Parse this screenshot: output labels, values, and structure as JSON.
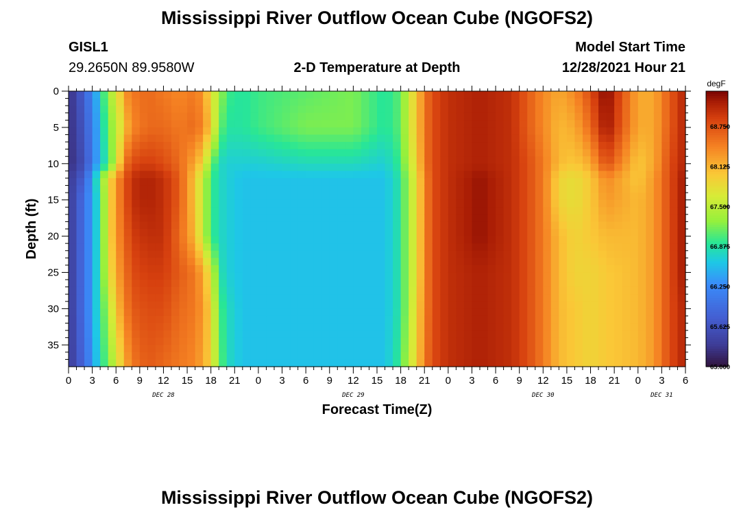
{
  "title": "Mississippi River Outflow Ocean Cube (NGOFS2)",
  "station": {
    "id": "GISL1",
    "location": "29.2650N  89.9580W"
  },
  "subtitle": "2-D Temperature at Depth",
  "model_start": {
    "label": "Model Start Time",
    "value": "12/28/2021 Hour 21"
  },
  "colorbar": {
    "unit": "degF",
    "min": 65.0,
    "max": 69.3,
    "ticks": [
      "65.000",
      "65.625",
      "66.250",
      "66.875",
      "67.500",
      "68.125",
      "68.750"
    ]
  },
  "chart_data": {
    "type": "heatmap",
    "xlabel": "Forecast Time(Z)",
    "ylabel": "Depth (ft)",
    "xlim": [
      0,
      78
    ],
    "ylim": [
      0,
      38
    ],
    "x_tick_labels": [
      "0",
      "3",
      "6",
      "9",
      "12",
      "15",
      "18",
      "21",
      "0",
      "3",
      "6",
      "9",
      "12",
      "15",
      "18",
      "21",
      "0",
      "3",
      "6",
      "9",
      "12",
      "15",
      "18",
      "21",
      "0",
      "3",
      "6"
    ],
    "y_tick_labels": [
      "0",
      "5",
      "10",
      "15",
      "20",
      "25",
      "30",
      "35"
    ],
    "date_labels": [
      "DEC 28",
      "DEC 29",
      "DEC 30",
      "DEC 31"
    ],
    "x_hours": [
      0,
      2,
      4,
      5,
      6,
      7,
      8,
      10,
      12,
      14,
      16,
      17,
      18,
      19,
      20,
      22,
      24,
      30,
      36,
      40,
      42,
      43,
      44,
      45,
      46,
      48,
      52,
      56,
      58,
      60,
      62,
      64,
      66,
      68,
      72,
      74,
      76,
      78
    ],
    "depths_ft": [
      0,
      5,
      10,
      12,
      15,
      20,
      25,
      30,
      38
    ],
    "temperature_profiles_degF": [
      [
        65.2,
        65.2,
        65.2,
        65.3,
        65.3,
        65.3,
        65.3,
        65.3,
        65.3
      ],
      [
        65.8,
        65.7,
        65.6,
        65.8,
        66.0,
        66.0,
        66.0,
        66.0,
        65.9
      ],
      [
        66.7,
        66.6,
        66.6,
        67.1,
        66.9,
        66.9,
        66.9,
        66.9,
        66.8
      ],
      [
        67.4,
        67.2,
        67.0,
        67.8,
        67.8,
        67.8,
        67.7,
        67.4,
        67.2
      ],
      [
        67.6,
        67.4,
        67.5,
        68.3,
        68.3,
        68.3,
        68.2,
        68.0,
        67.6
      ],
      [
        68.3,
        68.0,
        68.5,
        68.7,
        68.7,
        68.6,
        68.5,
        68.4,
        68.1
      ],
      [
        68.5,
        68.4,
        68.8,
        69.0,
        69.0,
        68.9,
        68.8,
        68.7,
        68.5
      ],
      [
        68.6,
        68.6,
        68.9,
        69.1,
        69.1,
        69.0,
        68.9,
        68.8,
        68.7
      ],
      [
        68.5,
        68.6,
        68.8,
        69.0,
        69.0,
        69.0,
        68.9,
        68.8,
        68.6
      ],
      [
        68.4,
        68.5,
        68.6,
        68.7,
        68.7,
        68.6,
        68.7,
        68.6,
        68.5
      ],
      [
        68.5,
        68.6,
        68.2,
        68.0,
        68.0,
        68.1,
        68.5,
        68.5,
        68.4
      ],
      [
        68.3,
        68.4,
        67.9,
        67.5,
        67.5,
        67.5,
        68.2,
        68.3,
        68.2
      ],
      [
        67.8,
        68.0,
        67.2,
        67.0,
        67.0,
        67.0,
        67.7,
        67.9,
        67.9
      ],
      [
        67.4,
        67.2,
        66.8,
        66.8,
        66.8,
        66.8,
        66.9,
        67.1,
        67.2
      ],
      [
        67.0,
        66.9,
        66.7,
        66.7,
        66.7,
        66.7,
        66.7,
        66.8,
        66.8
      ],
      [
        66.9,
        66.9,
        66.7,
        66.6,
        66.6,
        66.6,
        66.6,
        66.6,
        66.6
      ],
      [
        67.0,
        67.0,
        66.7,
        66.6,
        66.6,
        66.6,
        66.6,
        66.6,
        66.6
      ],
      [
        67.1,
        67.2,
        66.8,
        66.6,
        66.6,
        66.6,
        66.6,
        66.6,
        66.6
      ],
      [
        67.2,
        67.2,
        66.8,
        66.6,
        66.6,
        66.6,
        66.6,
        66.6,
        66.6
      ],
      [
        66.9,
        66.9,
        66.7,
        66.6,
        66.6,
        66.6,
        66.6,
        66.6,
        66.6
      ],
      [
        67.1,
        67.1,
        67.0,
        66.9,
        66.9,
        66.9,
        66.9,
        66.9,
        67.0
      ],
      [
        67.6,
        67.6,
        67.5,
        67.4,
        67.4,
        67.4,
        67.4,
        67.4,
        67.5
      ],
      [
        68.0,
        68.0,
        67.9,
        67.8,
        67.8,
        67.8,
        67.8,
        67.9,
        67.9
      ],
      [
        68.5,
        68.5,
        68.5,
        68.4,
        68.4,
        68.4,
        68.4,
        68.4,
        68.5
      ],
      [
        68.8,
        68.8,
        68.8,
        68.8,
        68.8,
        68.8,
        68.8,
        68.8,
        68.8
      ],
      [
        69.0,
        69.0,
        69.0,
        69.0,
        69.0,
        69.0,
        69.0,
        69.0,
        69.0
      ],
      [
        69.1,
        69.1,
        69.1,
        69.2,
        69.2,
        69.2,
        69.1,
        69.1,
        69.1
      ],
      [
        69.0,
        69.0,
        69.0,
        69.0,
        69.0,
        69.0,
        69.0,
        69.0,
        69.0
      ],
      [
        68.7,
        68.7,
        68.8,
        68.8,
        68.8,
        68.8,
        68.8,
        68.8,
        68.8
      ],
      [
        68.4,
        68.4,
        68.5,
        68.5,
        68.5,
        68.5,
        68.5,
        68.5,
        68.5
      ],
      [
        68.2,
        68.1,
        68.1,
        67.9,
        67.9,
        68.1,
        68.1,
        68.1,
        68.1
      ],
      [
        68.4,
        68.2,
        68.0,
        67.8,
        67.8,
        67.9,
        67.9,
        68.0,
        68.0
      ],
      [
        68.8,
        68.6,
        68.2,
        68.0,
        68.0,
        68.0,
        67.9,
        67.9,
        67.9
      ],
      [
        69.3,
        69.2,
        68.8,
        68.4,
        68.3,
        68.1,
        68.0,
        68.0,
        68.0
      ],
      [
        68.2,
        68.2,
        68.0,
        68.0,
        68.1,
        68.1,
        68.1,
        68.1,
        68.1
      ],
      [
        68.2,
        68.2,
        68.2,
        68.3,
        68.3,
        68.3,
        68.3,
        68.3,
        68.3
      ],
      [
        68.7,
        68.7,
        68.8,
        68.8,
        68.8,
        68.8,
        68.8,
        68.8,
        68.8
      ],
      [
        69.1,
        69.1,
        69.1,
        69.2,
        69.2,
        69.2,
        69.2,
        69.1,
        69.1
      ]
    ]
  }
}
